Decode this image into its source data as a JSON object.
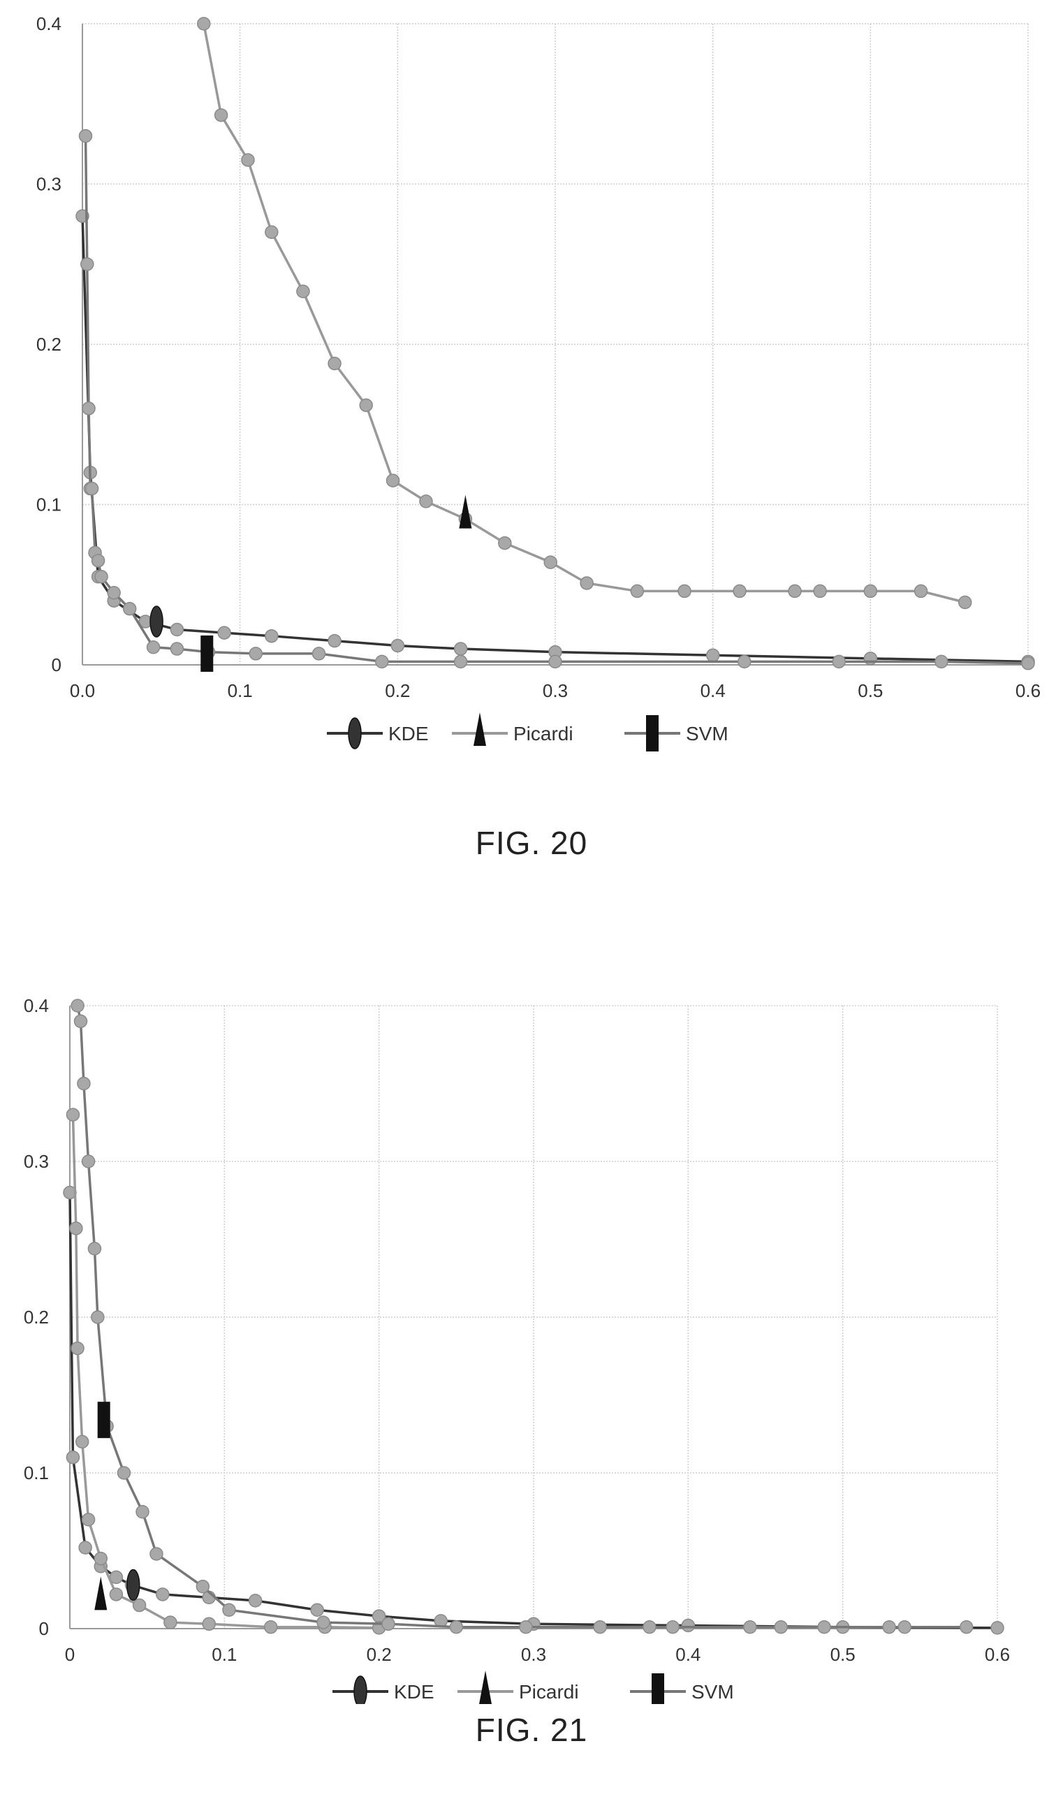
{
  "chart_data": [
    {
      "type": "line",
      "caption": "FIG. 20",
      "xlim": [
        0,
        0.6
      ],
      "ylim": [
        0,
        0.4
      ],
      "x_ticks": [
        0.0,
        0.1,
        0.2,
        0.3,
        0.4,
        0.5,
        0.6
      ],
      "x_tick_labels": [
        "0.0",
        "0.1",
        "0.2",
        "0.3",
        "0.4",
        "0.5",
        "0.6"
      ],
      "y_ticks": [
        0,
        0.1,
        0.2,
        0.3,
        0.4
      ],
      "y_tick_labels": [
        "0",
        "0.1",
        "0.2",
        "0.3",
        "0.4"
      ],
      "grid": true,
      "legend_position": "bottom",
      "series": [
        {
          "name": "KDE",
          "color": "#333333",
          "marker_shape": "ellipse",
          "x": [
            0.0,
            0.005,
            0.01,
            0.02,
            0.04,
            0.06,
            0.09,
            0.12,
            0.16,
            0.2,
            0.24,
            0.3,
            0.4,
            0.5,
            0.6
          ],
          "y": [
            0.28,
            0.12,
            0.055,
            0.04,
            0.027,
            0.022,
            0.02,
            0.018,
            0.015,
            0.012,
            0.01,
            0.008,
            0.006,
            0.004,
            0.002
          ],
          "key_marker": {
            "x": 0.047,
            "y": 0.027
          }
        },
        {
          "name": "Picardi",
          "color": "#999999",
          "marker_shape": "triangle",
          "x": [
            0.077,
            0.088,
            0.105,
            0.12,
            0.14,
            0.16,
            0.18,
            0.197,
            0.218,
            0.243,
            0.268,
            0.297,
            0.32,
            0.352,
            0.382,
            0.417,
            0.452,
            0.468,
            0.5,
            0.532,
            0.56
          ],
          "y": [
            0.4,
            0.343,
            0.315,
            0.27,
            0.233,
            0.188,
            0.162,
            0.115,
            0.102,
            0.091,
            0.076,
            0.064,
            0.051,
            0.046,
            0.046,
            0.046,
            0.046,
            0.046,
            0.046,
            0.046,
            0.039
          ],
          "key_marker": {
            "x": 0.243,
            "y": 0.093
          }
        },
        {
          "name": "SVM",
          "color": "#777777",
          "marker_shape": "rectangle",
          "x": [
            0.002,
            0.003,
            0.004,
            0.005,
            0.006,
            0.008,
            0.01,
            0.012,
            0.02,
            0.03,
            0.045,
            0.06,
            0.08,
            0.11,
            0.15,
            0.19,
            0.24,
            0.3,
            0.42,
            0.48,
            0.545,
            0.6
          ],
          "y": [
            0.33,
            0.25,
            0.16,
            0.11,
            0.11,
            0.07,
            0.065,
            0.055,
            0.045,
            0.035,
            0.011,
            0.01,
            0.008,
            0.007,
            0.007,
            0.002,
            0.002,
            0.002,
            0.002,
            0.002,
            0.002,
            0.001
          ],
          "key_marker": {
            "x": 0.079,
            "y": 0.007
          }
        }
      ]
    },
    {
      "type": "line",
      "caption": "FIG. 21",
      "xlim": [
        0,
        0.6
      ],
      "ylim": [
        0,
        0.4
      ],
      "x_ticks": [
        0,
        0.1,
        0.2,
        0.3,
        0.4,
        0.5,
        0.6
      ],
      "x_tick_labels": [
        "0",
        "0.1",
        "0.2",
        "0.3",
        "0.4",
        "0.5",
        "0.6"
      ],
      "y_ticks": [
        0,
        0.1,
        0.2,
        0.3,
        0.4
      ],
      "y_tick_labels": [
        "0",
        "0.1",
        "0.2",
        "0.3",
        "0.4"
      ],
      "grid": true,
      "legend_position": "bottom",
      "series": [
        {
          "name": "KDE",
          "color": "#333333",
          "marker_shape": "ellipse",
          "x": [
            0.0,
            0.002,
            0.01,
            0.02,
            0.03,
            0.04,
            0.06,
            0.09,
            0.12,
            0.16,
            0.2,
            0.24,
            0.3,
            0.4,
            0.5,
            0.6
          ],
          "y": [
            0.28,
            0.11,
            0.052,
            0.04,
            0.033,
            0.028,
            0.022,
            0.02,
            0.018,
            0.012,
            0.008,
            0.005,
            0.003,
            0.002,
            0.001,
            0.0005
          ],
          "key_marker": {
            "x": 0.041,
            "y": 0.028
          }
        },
        {
          "name": "Picardi",
          "color": "#999999",
          "marker_shape": "triangle",
          "x": [
            0.002,
            0.004,
            0.005,
            0.008,
            0.012,
            0.02,
            0.03,
            0.045,
            0.065,
            0.09,
            0.13,
            0.165,
            0.2
          ],
          "y": [
            0.33,
            0.257,
            0.18,
            0.12,
            0.07,
            0.045,
            0.022,
            0.015,
            0.004,
            0.003,
            0.001,
            0.001,
            0.0005
          ],
          "key_marker": {
            "x": 0.02,
            "y": 0.02
          }
        },
        {
          "name": "SVM",
          "color": "#777777",
          "marker_shape": "rectangle",
          "x": [
            0.005,
            0.007,
            0.009,
            0.012,
            0.016,
            0.018,
            0.024,
            0.035,
            0.047,
            0.056,
            0.086,
            0.103,
            0.164,
            0.206,
            0.25,
            0.295,
            0.343,
            0.375,
            0.39,
            0.44,
            0.46,
            0.488,
            0.53,
            0.54,
            0.58
          ],
          "y": [
            0.4,
            0.39,
            0.35,
            0.3,
            0.244,
            0.2,
            0.13,
            0.1,
            0.075,
            0.048,
            0.027,
            0.012,
            0.004,
            0.003,
            0.001,
            0.001,
            0.001,
            0.001,
            0.001,
            0.001,
            0.001,
            0.001,
            0.001,
            0.001,
            0.001
          ],
          "key_marker": {
            "x": 0.022,
            "y": 0.134
          }
        }
      ]
    }
  ],
  "figures": [
    {
      "caption": "FIG. 20",
      "legend": [
        "KDE",
        "Picardi",
        "SVM"
      ]
    },
    {
      "caption": "FIG. 21",
      "legend": [
        "KDE",
        "Picardi",
        "SVM"
      ]
    }
  ]
}
